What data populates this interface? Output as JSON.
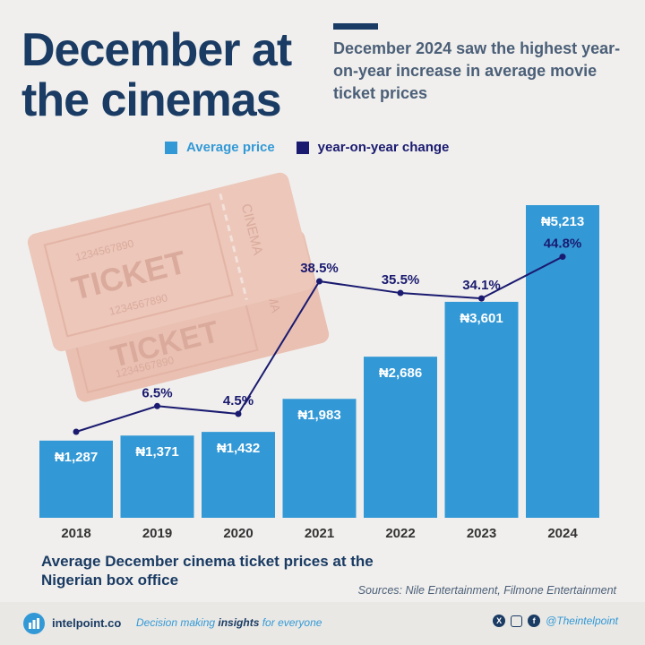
{
  "title": "December at the cinemas",
  "subtitle": "December 2024 saw the highest year-on-year increase in average movie ticket prices",
  "legend": {
    "price_label": "Average price",
    "yoy_label": "year-on-year change",
    "price_color": "#3399d6",
    "yoy_color": "#1a1a70"
  },
  "chart_data": {
    "type": "bar",
    "categories": [
      "2018",
      "2019",
      "2020",
      "2021",
      "2022",
      "2023",
      "2024"
    ],
    "series": [
      {
        "name": "Average price",
        "type": "bar",
        "values": [
          1287,
          1371,
          1432,
          1983,
          2686,
          3601,
          5213
        ],
        "labels": [
          "₦1,287",
          "₦1,371",
          "₦1,432",
          "₦1,983",
          "₦2,686",
          "₦3,601",
          "₦5,213"
        ]
      },
      {
        "name": "year-on-year change",
        "type": "line",
        "x": [
          "2019",
          "2020",
          "2021",
          "2022",
          "2023",
          "2024"
        ],
        "values": [
          6.5,
          4.5,
          38.5,
          35.5,
          34.1,
          44.8
        ],
        "labels": [
          "6.5%",
          "4.5%",
          "38.5%",
          "35.5%",
          "34.1%",
          "44.8%"
        ]
      }
    ],
    "baseline_point_2018": 0,
    "grid": false,
    "legend_position": "top"
  },
  "ticket_art": {
    "ticket_text": "TICKET",
    "cinema_text": "CINEMA",
    "serial_text": "1234567890"
  },
  "caption": "Average December cinema ticket prices at the Nigerian box office",
  "sources": "Sources: Nile Entertainment, Filmone Entertainment",
  "footer": {
    "brand": "intelpoint.co",
    "tagline_pre": "Decision making ",
    "tagline_bold": "insights",
    "tagline_post": " for everyone",
    "handle": "@Theintelpoint",
    "icons": [
      "x-icon",
      "instagram-icon",
      "facebook-icon"
    ]
  }
}
